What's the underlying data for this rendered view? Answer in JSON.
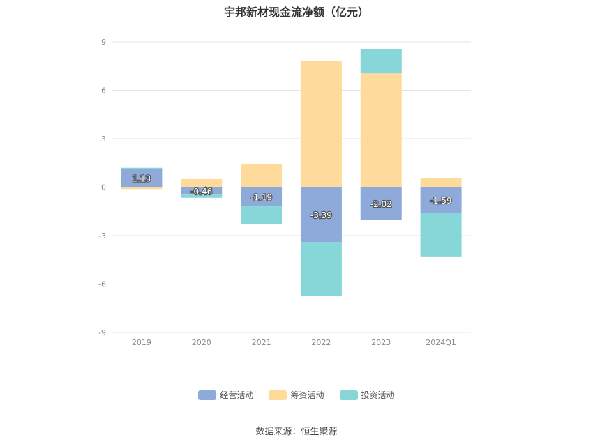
{
  "title": "宇邦新材现金流净额（亿元）",
  "source": "数据来源：恒生聚源",
  "chart_data": {
    "type": "bar",
    "stacked": true,
    "categories": [
      "2019",
      "2020",
      "2021",
      "2022",
      "2023",
      "2024Q1"
    ],
    "ylim": [
      -9,
      9
    ],
    "yticks": [
      9,
      6,
      3,
      0,
      -3,
      -6,
      -9
    ],
    "grid": true,
    "legend_position": "bottom",
    "series": [
      {
        "name": "经营活动",
        "color": "#8eaadb",
        "values": [
          1.13,
          -0.46,
          -1.19,
          -3.39,
          -2.02,
          -1.59
        ],
        "labels": [
          "1.13",
          "-0.46",
          "-1.19",
          "-3.39",
          "-2.02",
          "-1.59"
        ]
      },
      {
        "name": "筹资活动",
        "color": "#fedb9b",
        "values": [
          -0.12,
          0.5,
          1.45,
          7.8,
          7.05,
          0.55
        ]
      },
      {
        "name": "投资活动",
        "color": "#88d7d8",
        "values": [
          0.07,
          -0.2,
          -1.1,
          -3.35,
          1.5,
          -2.7
        ]
      }
    ]
  }
}
